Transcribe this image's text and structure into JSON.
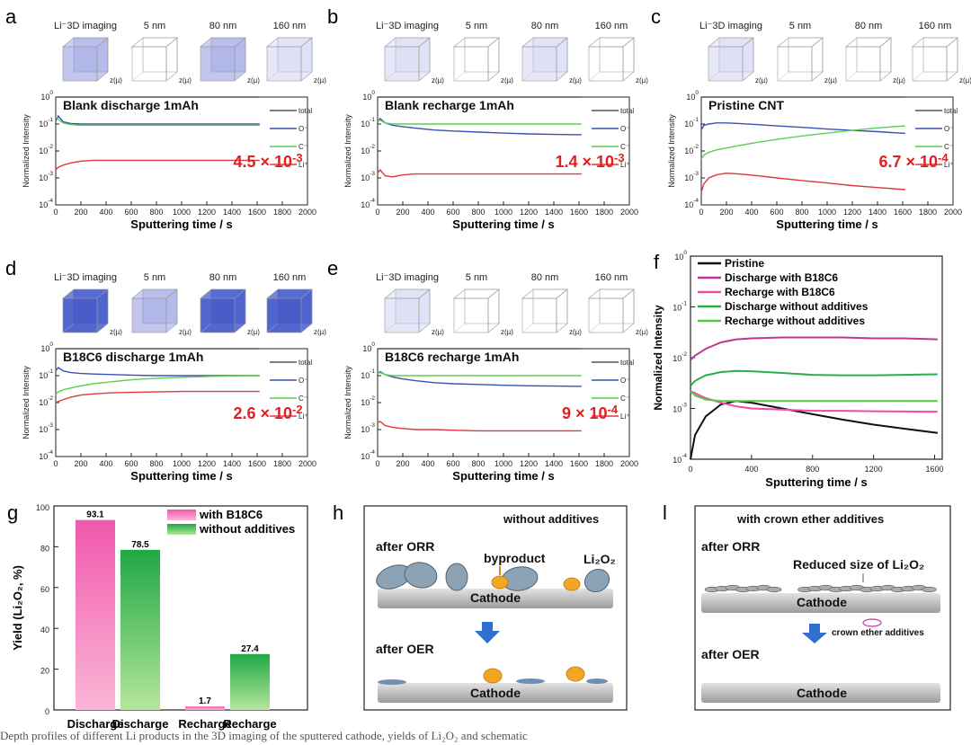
{
  "figure": {
    "imaging_headers": [
      "Li⁻3D imaging",
      "5 nm",
      "80 nm",
      "160 nm"
    ],
    "cube_axis_label": "z(µ)",
    "ylabel_small": "Normalized Intensity",
    "xlabel": "Sputtering time / s",
    "legend_small": [
      "total",
      "O⁻",
      "C⁻",
      "Li⁺"
    ],
    "colors": {
      "total": "#555555",
      "O": "#3a52b0",
      "C": "#5ccf50",
      "Li": "#e0373c",
      "red": "#e02020",
      "pink": "#ee4aa4",
      "green": "#27b048",
      "magenta": "#c0359a",
      "cube_dark": "#3f55c8",
      "cube_light": "#c8cbef"
    },
    "panels": [
      {
        "id": "a",
        "letter": "a",
        "title": "Blank discharge 1mAh",
        "value": "4.5 × 10",
        "exp": "-3",
        "cube_style": [
          "medium",
          "none",
          "medium",
          "light"
        ]
      },
      {
        "id": "b",
        "letter": "b",
        "title": "Blank recharge 1mAh",
        "value": "1.4 × 10",
        "exp": "-3",
        "cube_style": [
          "light",
          "none",
          "light",
          "none"
        ]
      },
      {
        "id": "c",
        "letter": "c",
        "title": "Pristine CNT",
        "value": "6.7 × 10",
        "exp": "-4",
        "cube_style": [
          "light",
          "none",
          "none",
          "none"
        ]
      },
      {
        "id": "d",
        "letter": "d",
        "title": "B18C6 discharge 1mAh",
        "value": "2.6 × 10",
        "exp": "-2",
        "cube_style": [
          "dark",
          "medium",
          "dark",
          "dark"
        ]
      },
      {
        "id": "e",
        "letter": "e",
        "title": "B18C6 recharge 1mAh",
        "value": "9 × 10",
        "exp": "-4",
        "cube_style": [
          "light",
          "none",
          "none",
          "none"
        ]
      }
    ],
    "small_xticks": [
      "0",
      "200",
      "400",
      "600",
      "800",
      "1000",
      "1200",
      "1400",
      "1600",
      "1800",
      "2000"
    ],
    "small_ytick_mant": [
      "10",
      "10",
      "10",
      "10",
      "10"
    ],
    "small_ytick_exp": [
      "0",
      "-1",
      "-2",
      "-3",
      "-4"
    ],
    "f_panel": {
      "letter": "f",
      "ylabel": "Normalized Intensity",
      "xticks": [
        "0",
        "400",
        "800",
        "1200",
        "1600"
      ],
      "legend": [
        "Pristine",
        "Discharge with B18C6",
        "Recharge with B18C6",
        "Discharge without additives",
        "Recharge without additives"
      ]
    },
    "g_panel": {
      "letter": "g",
      "ylabel": "Yield (Li₂O₂, %)",
      "yticks": [
        "0",
        "20",
        "40",
        "60",
        "80",
        "100"
      ],
      "legend": [
        "with B18C6",
        "without additives"
      ]
    },
    "h_panel": {
      "letter": "h",
      "tag": "without additives",
      "after_orr": "after ORR",
      "after_oer": "after OER",
      "byproduct": "byproduct",
      "li2o2": "Li₂O₂",
      "cathode": "Cathode"
    },
    "i_panel": {
      "letter": "l",
      "tag": "with crown ether additives",
      "after_orr": "after ORR",
      "after_oer": "after OER",
      "reduced": "Reduced size of Li₂O₂",
      "additive_label": "crown ether additives",
      "cathode": "Cathode"
    },
    "caption": "Depth profiles of different Li products in the 3D imaging of the sputtered cathode, yields of Li₂O₂ and schematic"
  },
  "chart_data": [
    {
      "type": "line",
      "panel": "a",
      "title": "Blank discharge 1mAh",
      "xlabel": "Sputtering time / s",
      "ylabel": "Normalized Intensity",
      "xlim": [
        0,
        2000
      ],
      "ylim": [
        0.0001,
        1
      ],
      "yscale": "log",
      "x": [
        0,
        20,
        60,
        120,
        200,
        300,
        450,
        600,
        800,
        1000,
        1200,
        1400,
        1620
      ],
      "series": [
        {
          "name": "total",
          "values": [
            1,
            1,
            1,
            1,
            1,
            1,
            1,
            1,
            1,
            1,
            1,
            1,
            1
          ]
        },
        {
          "name": "O⁻",
          "values": [
            0.13,
            0.2,
            0.12,
            0.105,
            0.1,
            0.1,
            0.1,
            0.1,
            0.1,
            0.1,
            0.1,
            0.1,
            0.1
          ]
        },
        {
          "name": "C⁻",
          "values": [
            0.18,
            0.15,
            0.11,
            0.095,
            0.09,
            0.09,
            0.09,
            0.09,
            0.09,
            0.09,
            0.09,
            0.09,
            0.09
          ]
        },
        {
          "name": "Li⁺",
          "values": [
            0.002,
            0.0025,
            0.003,
            0.0036,
            0.0042,
            0.0045,
            0.0045,
            0.0045,
            0.0045,
            0.0045,
            0.0045,
            0.0045,
            0.0045
          ]
        }
      ]
    },
    {
      "type": "line",
      "panel": "b",
      "title": "Blank recharge 1mAh",
      "xlabel": "Sputtering time / s",
      "ylabel": "Normalized Intensity",
      "xlim": [
        0,
        2000
      ],
      "ylim": [
        0.0001,
        1
      ],
      "yscale": "log",
      "x": [
        0,
        20,
        60,
        120,
        200,
        300,
        450,
        600,
        800,
        1000,
        1200,
        1400,
        1620
      ],
      "series": [
        {
          "name": "total",
          "values": [
            1,
            1,
            1,
            1,
            1,
            1,
            1,
            1,
            1,
            1,
            1,
            1,
            1
          ]
        },
        {
          "name": "O⁻",
          "values": [
            0.12,
            0.16,
            0.11,
            0.09,
            0.08,
            0.07,
            0.06,
            0.055,
            0.05,
            0.046,
            0.043,
            0.041,
            0.04
          ]
        },
        {
          "name": "C⁻",
          "values": [
            0.13,
            0.14,
            0.11,
            0.1,
            0.1,
            0.1,
            0.1,
            0.1,
            0.1,
            0.1,
            0.1,
            0.1,
            0.1
          ]
        },
        {
          "name": "Li⁺",
          "values": [
            0.0015,
            0.002,
            0.0012,
            0.0011,
            0.0013,
            0.0014,
            0.0014,
            0.0014,
            0.0014,
            0.0014,
            0.0014,
            0.0014,
            0.0014
          ]
        }
      ]
    },
    {
      "type": "line",
      "panel": "c",
      "title": "Pristine CNT",
      "xlabel": "Sputtering time / s",
      "ylabel": "Normalized Intensity",
      "xlim": [
        0,
        2000
      ],
      "ylim": [
        0.0001,
        1
      ],
      "yscale": "log",
      "x": [
        0,
        20,
        60,
        120,
        200,
        300,
        450,
        600,
        800,
        1000,
        1200,
        1400,
        1620
      ],
      "series": [
        {
          "name": "total",
          "values": [
            1,
            1,
            1,
            1,
            1,
            1,
            1,
            1,
            1,
            1,
            1,
            1,
            1
          ]
        },
        {
          "name": "O⁻",
          "values": [
            0.06,
            0.09,
            0.1,
            0.11,
            0.11,
            0.105,
            0.095,
            0.085,
            0.075,
            0.065,
            0.058,
            0.052,
            0.045
          ]
        },
        {
          "name": "C⁻",
          "values": [
            0.005,
            0.007,
            0.009,
            0.011,
            0.013,
            0.016,
            0.021,
            0.027,
            0.036,
            0.046,
            0.058,
            0.072,
            0.085
          ]
        },
        {
          "name": "Li⁺",
          "values": [
            0.0003,
            0.0006,
            0.001,
            0.0013,
            0.0015,
            0.0014,
            0.0012,
            0.001,
            0.0008,
            0.00065,
            0.00052,
            0.00044,
            0.00037
          ]
        }
      ]
    },
    {
      "type": "line",
      "panel": "d",
      "title": "B18C6 discharge 1mAh",
      "xlabel": "Sputtering time / s",
      "ylabel": "Normalized Intensity",
      "xlim": [
        0,
        2000
      ],
      "ylim": [
        0.0001,
        1
      ],
      "yscale": "log",
      "x": [
        0,
        20,
        60,
        120,
        200,
        300,
        450,
        600,
        800,
        1000,
        1200,
        1400,
        1620
      ],
      "series": [
        {
          "name": "total",
          "values": [
            1,
            1,
            1,
            1,
            1,
            1,
            1,
            1,
            1,
            1,
            1,
            1,
            1
          ]
        },
        {
          "name": "O⁻",
          "values": [
            0.15,
            0.2,
            0.15,
            0.13,
            0.12,
            0.115,
            0.11,
            0.105,
            0.1,
            0.1,
            0.1,
            0.1,
            0.1
          ]
        },
        {
          "name": "C⁻",
          "values": [
            0.02,
            0.025,
            0.03,
            0.035,
            0.042,
            0.05,
            0.06,
            0.07,
            0.08,
            0.087,
            0.093,
            0.097,
            0.1
          ]
        },
        {
          "name": "Li⁺",
          "values": [
            0.01,
            0.011,
            0.013,
            0.016,
            0.019,
            0.021,
            0.023,
            0.024,
            0.025,
            0.026,
            0.026,
            0.026,
            0.026
          ]
        }
      ]
    },
    {
      "type": "line",
      "panel": "e",
      "title": "B18C6 recharge 1mAh",
      "xlabel": "Sputtering time / s",
      "ylabel": "Normalized Intensity",
      "xlim": [
        0,
        2000
      ],
      "ylim": [
        0.0001,
        1
      ],
      "yscale": "log",
      "x": [
        0,
        20,
        60,
        120,
        200,
        300,
        450,
        600,
        800,
        1000,
        1200,
        1400,
        1620
      ],
      "series": [
        {
          "name": "total",
          "values": [
            1,
            1,
            1,
            1,
            1,
            1,
            1,
            1,
            1,
            1,
            1,
            1,
            1
          ]
        },
        {
          "name": "O⁻",
          "values": [
            0.12,
            0.14,
            0.11,
            0.09,
            0.075,
            0.065,
            0.055,
            0.05,
            0.047,
            0.044,
            0.042,
            0.041,
            0.04
          ]
        },
        {
          "name": "C⁻",
          "values": [
            0.12,
            0.13,
            0.11,
            0.1,
            0.1,
            0.1,
            0.1,
            0.1,
            0.1,
            0.1,
            0.1,
            0.1,
            0.1
          ]
        },
        {
          "name": "Li⁺",
          "values": [
            0.0018,
            0.002,
            0.0014,
            0.0012,
            0.0011,
            0.001,
            0.001,
            0.00095,
            0.0009,
            0.0009,
            0.0009,
            0.0009,
            0.0009
          ]
        }
      ]
    },
    {
      "type": "line",
      "panel": "f",
      "xlabel": "Sputtering time / s",
      "ylabel": "Normalized Intensity",
      "xlim": [
        0,
        1650
      ],
      "ylim": [
        0.0001,
        1
      ],
      "yscale": "log",
      "x": [
        0,
        30,
        100,
        200,
        300,
        400,
        600,
        800,
        1000,
        1200,
        1400,
        1620
      ],
      "series": [
        {
          "name": "Pristine",
          "values": [
            0.0001,
            0.0003,
            0.0007,
            0.0012,
            0.0014,
            0.0013,
            0.001,
            0.00077,
            0.0006,
            0.00048,
            0.0004,
            0.00033
          ]
        },
        {
          "name": "Discharge with B18C6",
          "values": [
            0.009,
            0.011,
            0.015,
            0.02,
            0.023,
            0.024,
            0.025,
            0.025,
            0.025,
            0.024,
            0.024,
            0.023
          ]
        },
        {
          "name": "Recharge with B18C6",
          "values": [
            0.0022,
            0.002,
            0.0016,
            0.0013,
            0.0011,
            0.001,
            0.00095,
            0.0009,
            0.0009,
            0.00088,
            0.00087,
            0.00086
          ]
        },
        {
          "name": "Discharge without additives",
          "values": [
            0.0028,
            0.0035,
            0.0045,
            0.0052,
            0.0055,
            0.0054,
            0.005,
            0.0046,
            0.0045,
            0.0045,
            0.0046,
            0.0047
          ]
        },
        {
          "name": "Recharge without additives",
          "values": [
            0.0022,
            0.0018,
            0.0015,
            0.0014,
            0.0014,
            0.0014,
            0.0014,
            0.0014,
            0.0014,
            0.0014,
            0.0014,
            0.0014
          ]
        }
      ]
    },
    {
      "type": "bar",
      "panel": "g",
      "ylabel": "Yield (Li₂O₂, %)",
      "ylim": [
        0,
        100
      ],
      "categories": [
        "Discharge",
        "Discharge",
        "Recharge",
        "Recharge"
      ],
      "values": [
        93.1,
        78.5,
        1.7,
        27.4
      ],
      "labels": [
        "93.1",
        "78.5",
        "1.7",
        "27.4"
      ],
      "groups": [
        "with B18C6",
        "without additives",
        "with B18C6",
        "without additives"
      ],
      "legend": [
        "with B18C6",
        "without additives"
      ]
    }
  ]
}
